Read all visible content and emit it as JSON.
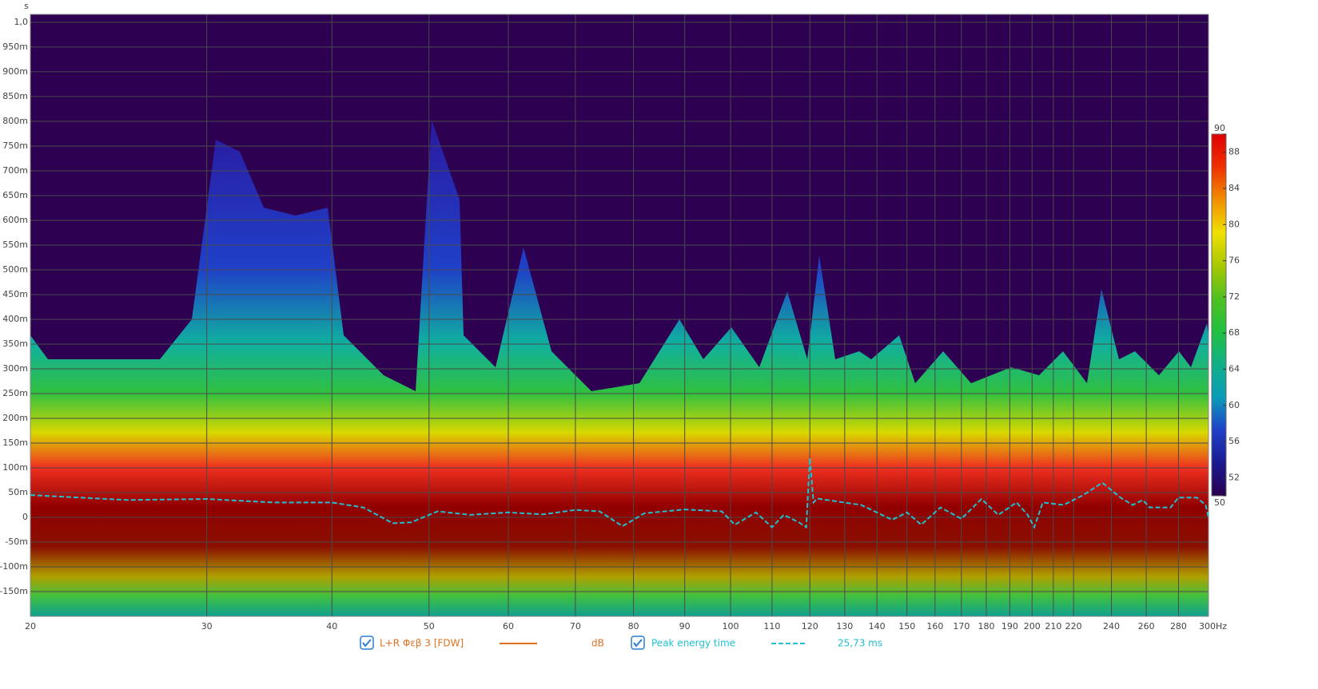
{
  "chart_data": {
    "type": "spectrogram",
    "y_unit": "s",
    "xlog": true,
    "grid": true,
    "xlim": [
      20,
      300
    ],
    "ylim": [
      -0.2,
      1.016
    ],
    "xticks": [
      20,
      30,
      40,
      50,
      60,
      70,
      80,
      90,
      100,
      110,
      120,
      130,
      140,
      150,
      160,
      170,
      180,
      190,
      200,
      210,
      220,
      240,
      260,
      280,
      {
        "value": 300,
        "label": "300Hz"
      }
    ],
    "yticks": [
      {
        "value": 1.0,
        "label": "1,0"
      },
      {
        "value": 0.95,
        "label": "950m"
      },
      {
        "value": 0.9,
        "label": "900m"
      },
      {
        "value": 0.85,
        "label": "850m"
      },
      {
        "value": 0.8,
        "label": "800m"
      },
      {
        "value": 0.75,
        "label": "750m"
      },
      {
        "value": 0.7,
        "label": "700m"
      },
      {
        "value": 0.65,
        "label": "650m"
      },
      {
        "value": 0.6,
        "label": "600m"
      },
      {
        "value": 0.55,
        "label": "550m"
      },
      {
        "value": 0.5,
        "label": "500m"
      },
      {
        "value": 0.45,
        "label": "450m"
      },
      {
        "value": 0.4,
        "label": "400m"
      },
      {
        "value": 0.35,
        "label": "350m"
      },
      {
        "value": 0.3,
        "label": "300m"
      },
      {
        "value": 0.25,
        "label": "250m"
      },
      {
        "value": 0.2,
        "label": "200m"
      },
      {
        "value": 0.15,
        "label": "150m"
      },
      {
        "value": 0.1,
        "label": "100m"
      },
      {
        "value": 0.05,
        "label": "50m"
      },
      0,
      {
        "value": -0.05,
        "label": "-50m"
      },
      {
        "value": -0.1,
        "label": "-100m"
      },
      {
        "value": -0.15,
        "label": "-150m"
      }
    ],
    "colorbar": {
      "lim": [
        50,
        90
      ],
      "ticks": [
        50,
        52,
        56,
        60,
        64,
        68,
        72,
        76,
        80,
        84,
        88,
        90
      ],
      "colormap": [
        "#2a0050",
        "#1a1a90",
        "#1f40c8",
        "#0a9cb8",
        "#10b088",
        "#20c040",
        "#50c020",
        "#a8c800",
        "#f0e000",
        "#f09000",
        "#f03000",
        "#e00000"
      ]
    },
    "series": [
      {
        "name": "L+R Φεβ 3 [FDW]",
        "color": "#e07020",
        "unit": "dB"
      },
      {
        "name": "Peak energy time",
        "color": "#20c0d0",
        "readout": "25,73 ms",
        "x": [
          20,
          25,
          30,
          35,
          40,
          43,
          46,
          48,
          51,
          55,
          60,
          65,
          70,
          74,
          78,
          82,
          90,
          98,
          101,
          106,
          110,
          113,
          117,
          119,
          120,
          121,
          122,
          135,
          145,
          150,
          155,
          162,
          170,
          178,
          185,
          193,
          198,
          201,
          205,
          215,
          225,
          235,
          245,
          252,
          258,
          262,
          275,
          280,
          292,
          298,
          300
        ],
        "values": [
          0.045,
          0.035,
          0.037,
          0.03,
          0.03,
          0.02,
          -0.012,
          -0.01,
          0.012,
          0.005,
          0.01,
          0.006,
          0.015,
          0.012,
          -0.018,
          0.008,
          0.016,
          0.012,
          -0.015,
          0.01,
          -0.02,
          0.005,
          -0.01,
          -0.02,
          0.12,
          0.03,
          0.038,
          0.025,
          -0.005,
          0.01,
          -0.015,
          0.02,
          -0.003,
          0.037,
          0.005,
          0.03,
          0.005,
          -0.02,
          0.03,
          0.025,
          0.045,
          0.07,
          0.04,
          0.025,
          0.035,
          0.02,
          0.02,
          0.04,
          0.04,
          0.025,
          0.0
        ]
      }
    ]
  }
}
